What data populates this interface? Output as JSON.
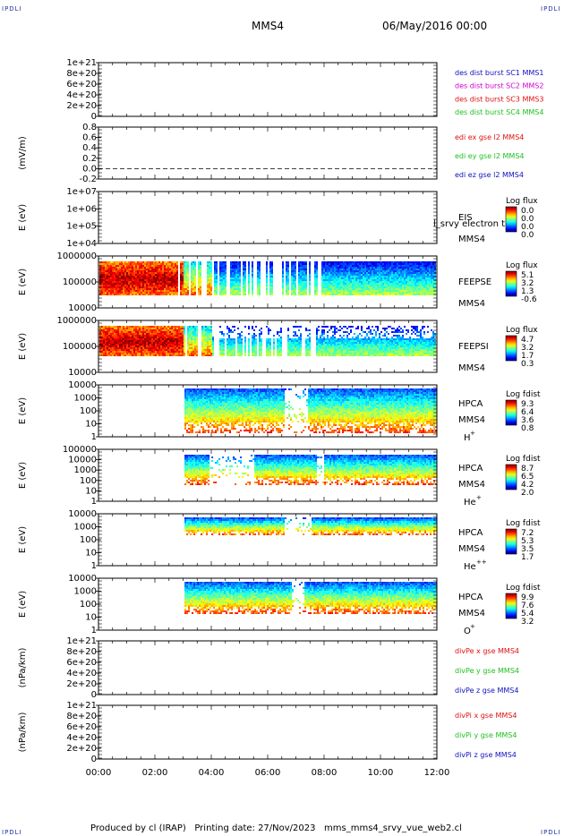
{
  "header": {
    "corner_tl": "IPDLI",
    "corner_tr": "IPDLI",
    "corner_bl": "IPDLI",
    "corner_br": "IPDLI",
    "spacecraft": "MMS4",
    "date": "06/May/2016 00:00"
  },
  "footer": {
    "text": "Produced by cl (IRAP)   Printing date: 27/Nov/2023   mms_mms4_srvy_vue_web2.cl"
  },
  "colors": {
    "frame": "#000000",
    "red": "#e01010",
    "green": "#20c020",
    "blue": "#1010c0",
    "magenta": "#d000d0"
  },
  "chart_data": [
    {
      "type": "line",
      "id": "des-dist",
      "ylabel": "",
      "ylim": [
        0,
        1e+21
      ],
      "yticks": [
        "1e+21",
        "8e+20",
        "6e+20",
        "4e+20",
        "2e+20",
        "0"
      ],
      "series": [
        {
          "name": "des dist burst SC1 MMS1",
          "color": "#1010c0",
          "values": []
        },
        {
          "name": "des dist burst SC2 MMS2",
          "color": "#d000d0",
          "values": []
        },
        {
          "name": "des dist burst SC3 MMS3",
          "color": "#e01010",
          "values": []
        },
        {
          "name": "des dist burst SC4 MMS4",
          "color": "#20c020",
          "values": []
        }
      ],
      "reference_line": 0
    },
    {
      "type": "line",
      "id": "edi",
      "ylabel": "(mV/m)",
      "ylim": [
        -0.2,
        0.8
      ],
      "yticks": [
        "0.8",
        "0.6",
        "0.4",
        "0.2",
        "0.0",
        "-0.2"
      ],
      "series": [
        {
          "name": "edi ex gse l2 MMS4",
          "color": "#e01010",
          "values": []
        },
        {
          "name": "edi ey gse l2 MMS4",
          "color": "#20c020",
          "values": []
        },
        {
          "name": "edi ez gse l2 MMS4",
          "color": "#1010c0",
          "values": []
        }
      ],
      "reference_line": 0
    },
    {
      "type": "heatmap",
      "id": "eis",
      "ylabel": "E (eV)",
      "yscale": "log",
      "ylim": [
        10000,
        10000000
      ],
      "yticks": [
        "1e+07",
        "1e+06",
        "1e+05",
        "1e+04"
      ],
      "labels": [
        "EIS",
        "MMS4"
      ],
      "overlay_label": "l_srvy electron to",
      "colorbar": {
        "title": "Log flux",
        "ticks": [
          "0.0",
          "0.0",
          "0.0",
          "0.0"
        ]
      },
      "data": "empty"
    },
    {
      "type": "heatmap",
      "id": "feepse",
      "ylabel": "E (eV)",
      "yscale": "log",
      "ylim": [
        10000,
        1000000
      ],
      "yticks": [
        "1000000",
        "100000",
        "10000"
      ],
      "labels": [
        "FEEPSE",
        "MMS4"
      ],
      "colorbar": {
        "title": "Log flux",
        "ticks": [
          "5.1",
          "3.2",
          "1.3",
          "-0.6"
        ]
      },
      "coverage_hours": [
        0,
        12
      ]
    },
    {
      "type": "heatmap",
      "id": "feepsi",
      "ylabel": "E (eV)",
      "yscale": "log",
      "ylim": [
        10000,
        1000000
      ],
      "yticks": [
        "1000000",
        "100000",
        "10000"
      ],
      "labels": [
        "FEEPSI",
        "MMS4"
      ],
      "colorbar": {
        "title": "Log flux",
        "ticks": [
          "4.7",
          "3.2",
          "1.7",
          "0.3"
        ]
      },
      "coverage_hours": [
        0,
        12
      ]
    },
    {
      "type": "heatmap",
      "id": "hpca-h",
      "ylabel": "E (eV)",
      "yscale": "log",
      "ylim": [
        1,
        40000
      ],
      "yticks": [
        "10000",
        "1000",
        "100",
        "10",
        "1"
      ],
      "labels": [
        "HPCA",
        "MMS4"
      ],
      "species": "H",
      "species_sup": "+",
      "colorbar": {
        "title": "Log fdist",
        "ticks": [
          "9.3",
          "6.4",
          "3.6",
          "0.8"
        ]
      },
      "coverage_hours": [
        3.05,
        12
      ]
    },
    {
      "type": "heatmap",
      "id": "hpca-he",
      "ylabel": "E (eV)",
      "yscale": "log",
      "ylim": [
        1,
        40000
      ],
      "yticks": [
        "100000",
        "10000",
        "1000",
        "100",
        "10",
        "1"
      ],
      "labels": [
        "HPCA",
        "MMS4"
      ],
      "species": "He",
      "species_sup": "+",
      "colorbar": {
        "title": "Log fdist",
        "ticks": [
          "8.7",
          "6.5",
          "4.2",
          "2.0"
        ]
      },
      "coverage_hours": [
        3.05,
        12
      ]
    },
    {
      "type": "heatmap",
      "id": "hpca-he2",
      "ylabel": "E (eV)",
      "yscale": "log",
      "ylim": [
        1,
        40000
      ],
      "yticks": [
        "10000",
        "1000",
        "100",
        "10",
        "1"
      ],
      "labels": [
        "HPCA",
        "MMS4"
      ],
      "species": "He",
      "species_sup": "++",
      "colorbar": {
        "title": "Log fdist",
        "ticks": [
          "7.2",
          "5.3",
          "3.5",
          "1.7"
        ]
      },
      "coverage_hours": [
        3.05,
        12
      ]
    },
    {
      "type": "heatmap",
      "id": "hpca-o",
      "ylabel": "E (eV)",
      "yscale": "log",
      "ylim": [
        1,
        40000
      ],
      "yticks": [
        "10000",
        "1000",
        "100",
        "10",
        "1"
      ],
      "labels": [
        "HPCA",
        "MMS4"
      ],
      "species": "O",
      "species_sup": "+",
      "colorbar": {
        "title": "Log fdist",
        "ticks": [
          "9.9",
          "7.6",
          "5.4",
          "3.2"
        ]
      },
      "coverage_hours": [
        3.05,
        12
      ]
    },
    {
      "type": "line",
      "id": "divpe",
      "ylabel": "(nPa/km)",
      "ylim": [
        0,
        1e+21
      ],
      "yticks": [
        "1e+21",
        "8e+20",
        "6e+20",
        "4e+20",
        "2e+20",
        "0"
      ],
      "series": [
        {
          "name": "divPe x gse MMS4",
          "color": "#e01010",
          "values": []
        },
        {
          "name": "divPe y gse MMS4",
          "color": "#20c020",
          "values": []
        },
        {
          "name": "divPe z gse MMS4",
          "color": "#1010c0",
          "values": []
        }
      ],
      "reference_line": 0
    },
    {
      "type": "line",
      "id": "divpi",
      "ylabel": "(nPa/km)",
      "ylim": [
        0,
        1e+21
      ],
      "yticks": [
        "1e+21",
        "8e+20",
        "6e+20",
        "4e+20",
        "2e+20",
        "0"
      ],
      "series": [
        {
          "name": "divPi x gse MMS4",
          "color": "#e01010",
          "values": []
        },
        {
          "name": "divPi y gse MMS4",
          "color": "#20c020",
          "values": []
        },
        {
          "name": "divPi z gse MMS4",
          "color": "#1010c0",
          "values": []
        }
      ],
      "reference_line": 0
    }
  ],
  "xaxis": {
    "ticks": [
      "00:00",
      "02:00",
      "04:00",
      "06:00",
      "08:00",
      "10:00",
      "12:00"
    ],
    "xlim": [
      0,
      12
    ]
  }
}
